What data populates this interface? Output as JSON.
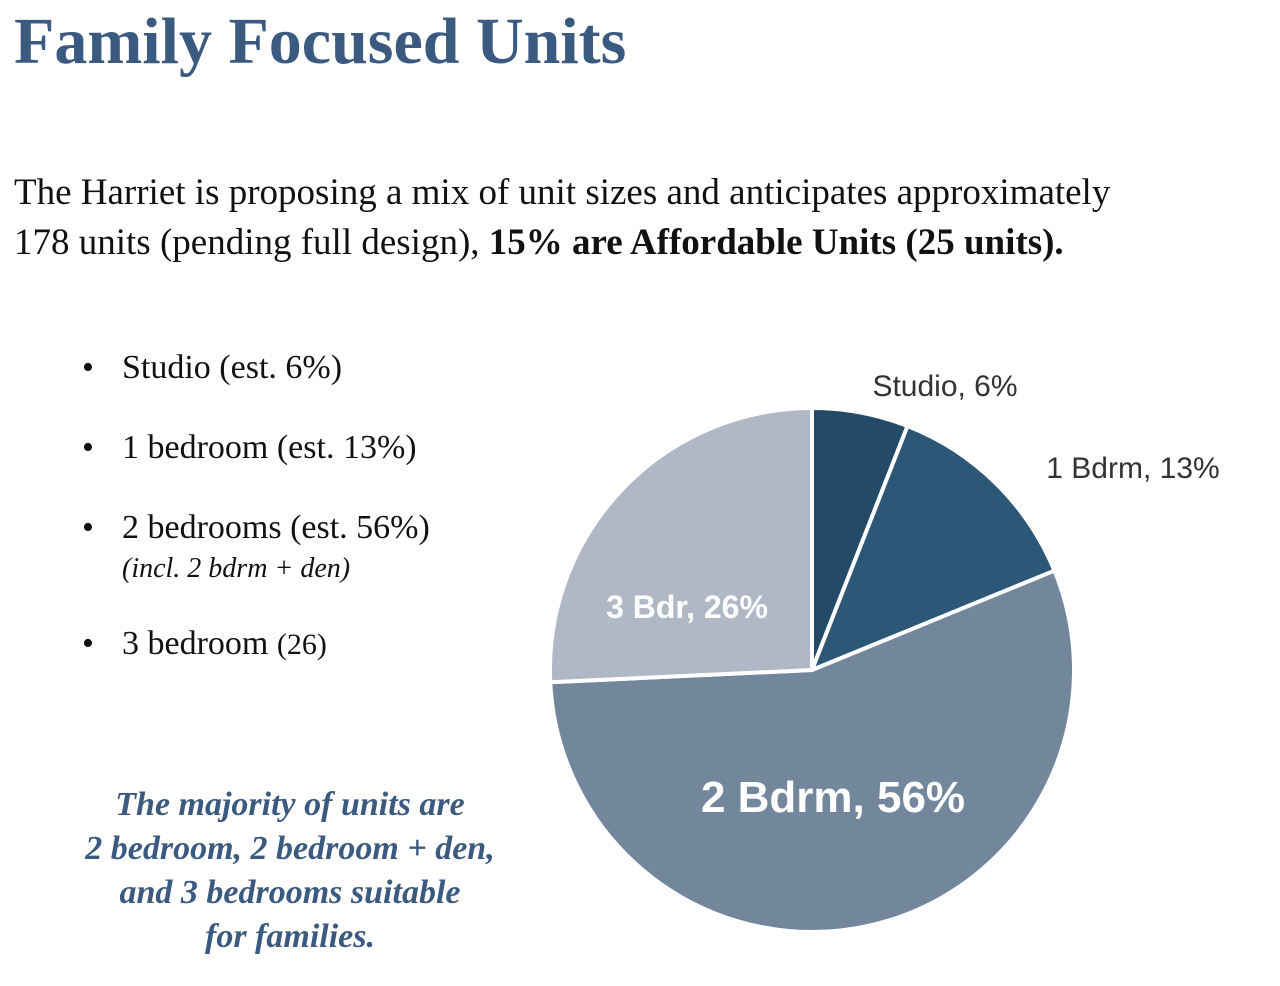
{
  "title": "Family Focused Units",
  "intro": {
    "line1": "The Harriet is proposing a mix of unit sizes and anticipates approximately",
    "line2_plain": "178 units (pending full design), ",
    "line2_bold": "15% are Affordable Units (25 units)."
  },
  "bullets": [
    {
      "label": "Studio (est. 6%)"
    },
    {
      "label": "1 bedroom (est. 13%)"
    },
    {
      "label": "2 bedrooms (est. 56%)",
      "note": "(incl. 2 bdrm + den)"
    },
    {
      "label": "3 bedroom ",
      "extra": "(26)"
    }
  ],
  "bullet_glyph": "•",
  "callout": [
    "The majority of units are",
    "2 bedroom, 2 bedroom + den,",
    "and 3 bedrooms suitable",
    "for families."
  ],
  "colors": {
    "title": "#3b5a80",
    "callout": "#3b5a80",
    "studio": "#234a66",
    "one_bdrm": "#2c5777",
    "two_bdrm": "#72879c",
    "three_bdr": "#b1b8c5"
  },
  "chart_data": {
    "type": "pie",
    "slices": [
      {
        "name": "Studio",
        "value": 6,
        "label": "Studio, 6%",
        "color": "#234a66",
        "label_position": "outside"
      },
      {
        "name": "1 Bdrm",
        "value": 13,
        "label": "1 Bdrm, 13%",
        "color": "#2c5777",
        "label_position": "outside"
      },
      {
        "name": "2 Bdrm",
        "value": 56,
        "label": "2 Bdrm, 56%",
        "color": "#72879c",
        "label_position": "inside"
      },
      {
        "name": "3 Bdr",
        "value": 26,
        "label": "3 Bdr, 26%",
        "color": "#b1b8c5",
        "label_position": "inside"
      }
    ],
    "start": "12 o'clock",
    "direction": "clockwise"
  }
}
